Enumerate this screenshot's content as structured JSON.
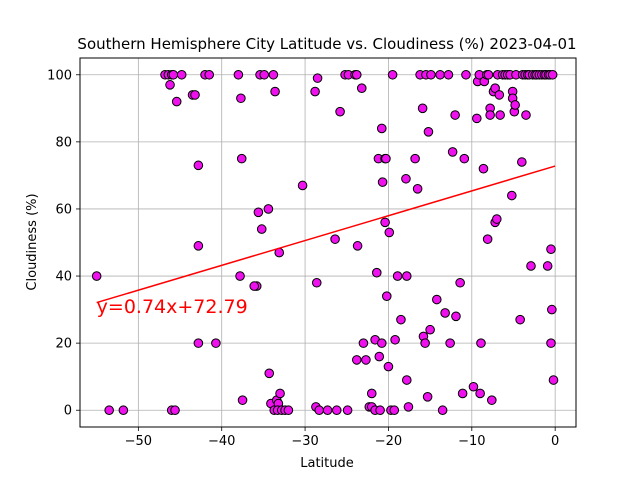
{
  "chart_data": {
    "type": "scatter",
    "title": "Southern Hemisphere City Latitude vs. Cloudiness (%) 2023-04-01",
    "xlabel": "Latitude",
    "ylabel": "Cloudiness (%)",
    "xlim": [
      -57,
      2.5
    ],
    "ylim": [
      -5,
      105
    ],
    "xticks": [
      -50,
      -40,
      -30,
      -20,
      -10,
      0
    ],
    "yticks": [
      0,
      20,
      40,
      60,
      80,
      100
    ],
    "grid": true,
    "marker_color": "#ee11ee",
    "marker_edge": "#000000",
    "regression": {
      "slope": 0.74,
      "intercept": 72.79,
      "x_range": [
        -55,
        0
      ],
      "color": "#ff0000",
      "equation": "y=0.74x+72.79",
      "label_x": -55,
      "label_y": 31
    },
    "points": [
      [
        -55,
        40
      ],
      [
        -53.5,
        0
      ],
      [
        -51.8,
        0
      ],
      [
        -46.8,
        100
      ],
      [
        -46.4,
        100
      ],
      [
        -46,
        100
      ],
      [
        -45.8,
        100
      ],
      [
        -46.2,
        97
      ],
      [
        -45.4,
        92
      ],
      [
        -46,
        0
      ],
      [
        -45.6,
        0
      ],
      [
        -44.8,
        100
      ],
      [
        -43.5,
        94
      ],
      [
        -43.2,
        94
      ],
      [
        -42.8,
        73
      ],
      [
        -42.8,
        49
      ],
      [
        -42.8,
        20
      ],
      [
        -42,
        100
      ],
      [
        -41.5,
        100
      ],
      [
        -40.7,
        20
      ],
      [
        -38,
        100
      ],
      [
        -37.7,
        93
      ],
      [
        -37.6,
        75
      ],
      [
        -37.8,
        40
      ],
      [
        -37.5,
        3
      ],
      [
        -35.8,
        37
      ],
      [
        -36.1,
        37
      ],
      [
        -35.6,
        59
      ],
      [
        -35.2,
        54
      ],
      [
        -35.4,
        100
      ],
      [
        -34.9,
        100
      ],
      [
        -34.4,
        60
      ],
      [
        -34.3,
        11
      ],
      [
        -34.1,
        2
      ],
      [
        -33.8,
        100
      ],
      [
        -33.6,
        95
      ],
      [
        -33.7,
        0
      ],
      [
        -33.4,
        3
      ],
      [
        -33.2,
        2
      ],
      [
        -33.3,
        0
      ],
      [
        -33,
        5
      ],
      [
        -33.1,
        47
      ],
      [
        -32.8,
        0
      ],
      [
        -32.4,
        0
      ],
      [
        -32,
        0
      ],
      [
        -30.3,
        67
      ],
      [
        -28.8,
        95
      ],
      [
        -28.5,
        99
      ],
      [
        -28.6,
        38
      ],
      [
        -28.7,
        1
      ],
      [
        -28.3,
        0
      ],
      [
        -27.3,
        0
      ],
      [
        -26.4,
        51
      ],
      [
        -26.2,
        0
      ],
      [
        -25.8,
        89
      ],
      [
        -25.2,
        100
      ],
      [
        -24.8,
        100
      ],
      [
        -24.9,
        0
      ],
      [
        -24,
        100
      ],
      [
        -23.8,
        100
      ],
      [
        -23.8,
        15
      ],
      [
        -23.7,
        49
      ],
      [
        -23.2,
        96
      ],
      [
        -23,
        20
      ],
      [
        -22.7,
        15
      ],
      [
        -22.3,
        1
      ],
      [
        -22,
        1
      ],
      [
        -22,
        5
      ],
      [
        -21.6,
        0
      ],
      [
        -21.6,
        21
      ],
      [
        -21.4,
        41
      ],
      [
        -21.2,
        75
      ],
      [
        -21.1,
        16
      ],
      [
        -21,
        0
      ],
      [
        -20.8,
        20
      ],
      [
        -20.8,
        84
      ],
      [
        -20.7,
        68
      ],
      [
        -20.4,
        75
      ],
      [
        -20.3,
        75
      ],
      [
        -20.4,
        56
      ],
      [
        -20.2,
        34
      ],
      [
        -20,
        13
      ],
      [
        -19.9,
        53
      ],
      [
        -19.7,
        0
      ],
      [
        -19.5,
        100
      ],
      [
        -19.3,
        0
      ],
      [
        -19.2,
        21
      ],
      [
        -18.9,
        40
      ],
      [
        -18.5,
        27
      ],
      [
        -17.9,
        69
      ],
      [
        -17.8,
        40
      ],
      [
        -17.8,
        9
      ],
      [
        -17.6,
        1
      ],
      [
        -16.8,
        75
      ],
      [
        -16.5,
        66
      ],
      [
        -16.2,
        100
      ],
      [
        -15.9,
        90
      ],
      [
        -15.8,
        22
      ],
      [
        -15.6,
        20
      ],
      [
        -15.5,
        100
      ],
      [
        -15.2,
        83
      ],
      [
        -15.3,
        4
      ],
      [
        -15,
        24
      ],
      [
        -14.9,
        100
      ],
      [
        -14.2,
        33
      ],
      [
        -13.8,
        100
      ],
      [
        -13.5,
        0
      ],
      [
        -13.2,
        29
      ],
      [
        -12.8,
        100
      ],
      [
        -12.6,
        20
      ],
      [
        -12.3,
        77
      ],
      [
        -12,
        88
      ],
      [
        -11.9,
        28
      ],
      [
        -11.4,
        38
      ],
      [
        -11.1,
        5
      ],
      [
        -10.9,
        75
      ],
      [
        -10.7,
        100
      ],
      [
        -9.8,
        7
      ],
      [
        -9.4,
        87
      ],
      [
        -9.3,
        98
      ],
      [
        -9.1,
        100
      ],
      [
        -9,
        5
      ],
      [
        -8.9,
        20
      ],
      [
        -8.6,
        72
      ],
      [
        -8.5,
        98
      ],
      [
        -8.2,
        100
      ],
      [
        -8.1,
        51
      ],
      [
        -8,
        100
      ],
      [
        -7.8,
        90
      ],
      [
        -7.8,
        88
      ],
      [
        -7.6,
        3
      ],
      [
        -7.4,
        95
      ],
      [
        -7.2,
        96
      ],
      [
        -7.2,
        56
      ],
      [
        -7,
        57
      ],
      [
        -6.9,
        100
      ],
      [
        -6.7,
        94
      ],
      [
        -6.6,
        88
      ],
      [
        -6.3,
        100
      ],
      [
        -6,
        100
      ],
      [
        -5.7,
        100
      ],
      [
        -5.4,
        100
      ],
      [
        -5.2,
        64
      ],
      [
        -5.1,
        95
      ],
      [
        -5.1,
        93
      ],
      [
        -4.9,
        89
      ],
      [
        -4.8,
        91
      ],
      [
        -4.7,
        100
      ],
      [
        -4.2,
        27
      ],
      [
        -4,
        74
      ],
      [
        -3.9,
        100
      ],
      [
        -3.6,
        100
      ],
      [
        -3.5,
        88
      ],
      [
        -3.3,
        100
      ],
      [
        -3.1,
        100
      ],
      [
        -2.9,
        43
      ],
      [
        -2.7,
        100
      ],
      [
        -2.4,
        100
      ],
      [
        -2.2,
        100
      ],
      [
        -1.9,
        100
      ],
      [
        -1.6,
        100
      ],
      [
        -1.3,
        100
      ],
      [
        -1.1,
        100
      ],
      [
        -0.9,
        43
      ],
      [
        -0.8,
        100
      ],
      [
        -0.6,
        100
      ],
      [
        -0.5,
        48
      ],
      [
        -0.5,
        20
      ],
      [
        -0.4,
        30
      ],
      [
        -0.3,
        100
      ],
      [
        -0.2,
        9
      ]
    ]
  }
}
